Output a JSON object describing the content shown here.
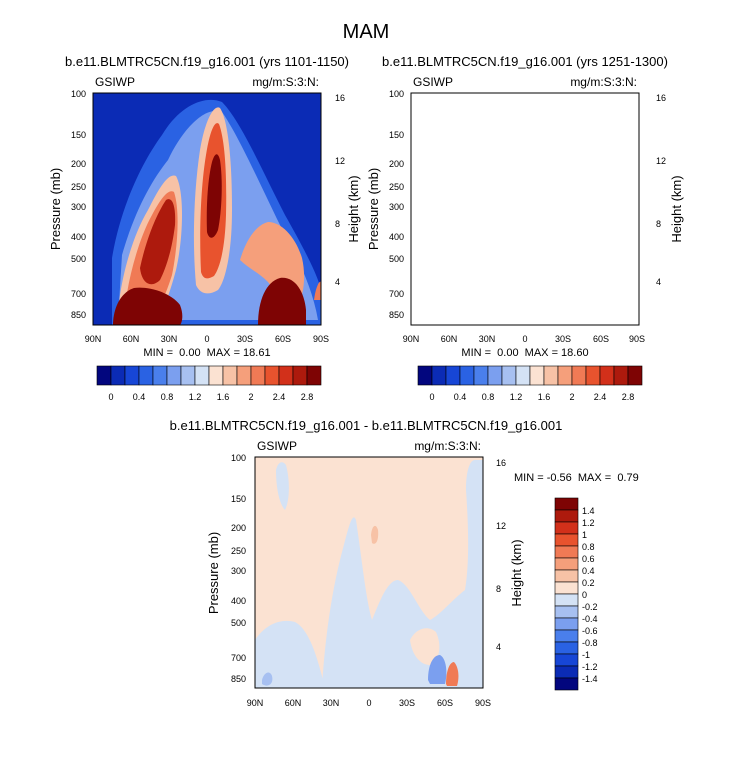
{
  "page_title": "MAM",
  "chart_data": [
    {
      "type": "heatmap",
      "title": "b.e11.BLMTRC5CN.f19_g16.001 (yrs 1101-1150)",
      "left_label": "GSIWP",
      "right_label": "mg/m:S:3:N:",
      "ylabel": "Pressure (mb)",
      "ylabel_right": "Height (km)",
      "x_ticks": [
        "90N",
        "60N",
        "30N",
        "0",
        "30S",
        "60S",
        "90S"
      ],
      "y_ticks": [
        "100",
        "150",
        "200",
        "250",
        "300",
        "400",
        "500",
        "700",
        "850"
      ],
      "y_ticks_right": [
        "16",
        "12",
        "8",
        "4"
      ],
      "stats": "MIN =  0.00  MAX = 18.61",
      "min": 0.0,
      "max": 18.61
    },
    {
      "type": "heatmap",
      "title": "b.e11.BLMTRC5CN.f19_g16.001 (yrs 1251-1300)",
      "left_label": "GSIWP",
      "right_label": "mg/m:S:3:N:",
      "ylabel": "Pressure (mb)",
      "ylabel_right": "Height (km)",
      "x_ticks": [
        "90N",
        "60N",
        "30N",
        "0",
        "30S",
        "60S",
        "90S"
      ],
      "y_ticks": [
        "100",
        "150",
        "200",
        "250",
        "300",
        "400",
        "500",
        "700",
        "850"
      ],
      "y_ticks_right": [
        "16",
        "12",
        "8",
        "4"
      ],
      "stats": "MIN =  0.00  MAX = 18.60",
      "min": 0.0,
      "max": 18.6
    },
    {
      "type": "heatmap",
      "title": "b.e11.BLMTRC5CN.f19_g16.001 - b.e11.BLMTRC5CN.f19_g16.001",
      "left_label": "GSIWP",
      "right_label": "mg/m:S:3:N:",
      "ylabel": "Pressure (mb)",
      "ylabel_right": "Height (km)",
      "x_ticks": [
        "90N",
        "60N",
        "30N",
        "0",
        "30S",
        "60S",
        "90S"
      ],
      "y_ticks": [
        "100",
        "150",
        "200",
        "250",
        "300",
        "400",
        "500",
        "700",
        "850"
      ],
      "y_ticks_right": [
        "16",
        "12",
        "8",
        "4"
      ],
      "stats": "MIN = -0.56  MAX =  0.79",
      "min": -0.56,
      "max": 0.79
    }
  ],
  "colorbar_top": {
    "labels": [
      "0",
      "0.4",
      "0.8",
      "1.2",
      "1.6",
      "2",
      "2.4",
      "2.8"
    ],
    "colors": [
      "#02067e",
      "#0b2bb5",
      "#1746d6",
      "#2a62e3",
      "#4a7fec",
      "#7b9fef",
      "#a7c0f1",
      "#d4e2f5",
      "#fbe2d2",
      "#f7c2a6",
      "#f59f7b",
      "#f07a55",
      "#e8532e",
      "#d2301a",
      "#ad1a0d",
      "#7e0404"
    ]
  },
  "colorbar_diff": {
    "labels": [
      "1.4",
      "1.2",
      "1",
      "0.8",
      "0.6",
      "0.4",
      "0.2",
      "0",
      "-0.2",
      "-0.4",
      "-0.6",
      "-0.8",
      "-1",
      "-1.2",
      "-1.4"
    ],
    "colors": [
      "#7e0404",
      "#ad1a0d",
      "#d2301a",
      "#e8532e",
      "#f07a55",
      "#f59f7b",
      "#f7c2a6",
      "#fbe2d2",
      "#d4e2f5",
      "#a7c0f1",
      "#7b9fef",
      "#4a7fec",
      "#2a62e3",
      "#1746d6",
      "#0b2bb5",
      "#02067e"
    ]
  }
}
